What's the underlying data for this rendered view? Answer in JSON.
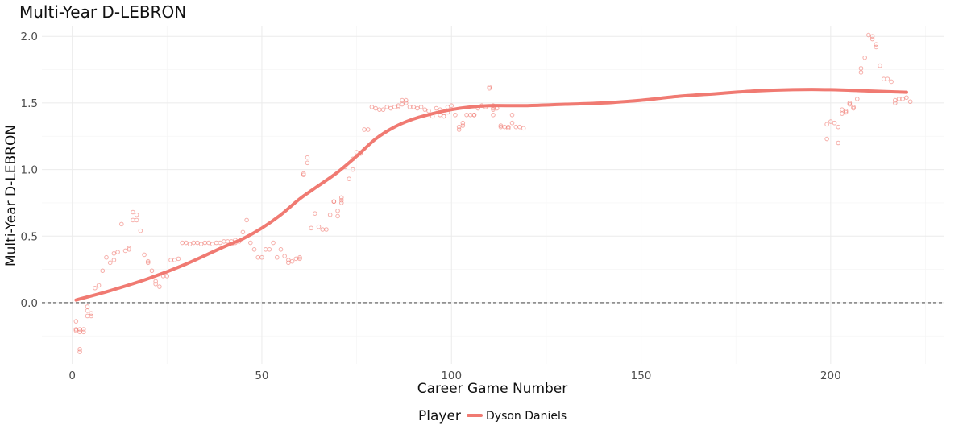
{
  "chart_data": {
    "type": "scatter",
    "title": "Multi-Year D-LEBRON",
    "xlabel": "Career Game Number",
    "ylabel": "Multi-Year D-LEBRON",
    "xlim": [
      -8,
      230
    ],
    "ylim": [
      -0.46,
      2.08
    ],
    "x_ticks": [
      0,
      50,
      100,
      150,
      200
    ],
    "y_ticks": [
      0.0,
      0.5,
      1.0,
      1.5,
      2.0
    ],
    "x_tick_labels": [
      "0",
      "50",
      "100",
      "150",
      "200"
    ],
    "y_tick_labels": [
      "0.0",
      "0.5",
      "1.0",
      "1.5",
      "2.0"
    ],
    "reference_line": {
      "y": 0.0,
      "style": "dashed"
    },
    "grid": true,
    "legend": {
      "title": "Player",
      "position": "bottom"
    },
    "series": [
      {
        "name": "Dyson Daniels",
        "color": "#F07A72",
        "points": [
          [
            1,
            -0.14
          ],
          [
            1,
            -0.2
          ],
          [
            1,
            -0.21
          ],
          [
            2,
            -0.2
          ],
          [
            2,
            -0.22
          ],
          [
            2,
            -0.35
          ],
          [
            2,
            -0.37
          ],
          [
            3,
            -0.2
          ],
          [
            3,
            -0.22
          ],
          [
            4,
            -0.1
          ],
          [
            4,
            -0.03
          ],
          [
            4,
            -0.06
          ],
          [
            5,
            -0.08
          ],
          [
            5,
            -0.1
          ],
          [
            6,
            0.11
          ],
          [
            7,
            0.13
          ],
          [
            8,
            0.24
          ],
          [
            9,
            0.34
          ],
          [
            10,
            0.3
          ],
          [
            11,
            0.32
          ],
          [
            11,
            0.37
          ],
          [
            12,
            0.38
          ],
          [
            13,
            0.59
          ],
          [
            14,
            0.39
          ],
          [
            15,
            0.4
          ],
          [
            15,
            0.41
          ],
          [
            16,
            0.68
          ],
          [
            16,
            0.62
          ],
          [
            17,
            0.66
          ],
          [
            17,
            0.62
          ],
          [
            18,
            0.54
          ],
          [
            19,
            0.36
          ],
          [
            20,
            0.31
          ],
          [
            20,
            0.3
          ],
          [
            21,
            0.24
          ],
          [
            22,
            0.16
          ],
          [
            22,
            0.14
          ],
          [
            23,
            0.12
          ],
          [
            24,
            0.2
          ],
          [
            25,
            0.2
          ],
          [
            26,
            0.32
          ],
          [
            27,
            0.32
          ],
          [
            28,
            0.33
          ],
          [
            29,
            0.45
          ],
          [
            30,
            0.45
          ],
          [
            31,
            0.44
          ],
          [
            32,
            0.45
          ],
          [
            33,
            0.45
          ],
          [
            34,
            0.44
          ],
          [
            35,
            0.45
          ],
          [
            36,
            0.45
          ],
          [
            37,
            0.44
          ],
          [
            38,
            0.45
          ],
          [
            39,
            0.45
          ],
          [
            40,
            0.46
          ],
          [
            41,
            0.46
          ],
          [
            42,
            0.46
          ],
          [
            42,
            0.44
          ],
          [
            43,
            0.45
          ],
          [
            43,
            0.47
          ],
          [
            44,
            0.46
          ],
          [
            45,
            0.53
          ],
          [
            46,
            0.62
          ],
          [
            47,
            0.45
          ],
          [
            48,
            0.4
          ],
          [
            49,
            0.34
          ],
          [
            50,
            0.34
          ],
          [
            51,
            0.4
          ],
          [
            52,
            0.4
          ],
          [
            53,
            0.45
          ],
          [
            54,
            0.34
          ],
          [
            55,
            0.4
          ],
          [
            56,
            0.35
          ],
          [
            57,
            0.32
          ],
          [
            57,
            0.3
          ],
          [
            58,
            0.31
          ],
          [
            59,
            0.33
          ],
          [
            60,
            0.33
          ],
          [
            60,
            0.34
          ],
          [
            61,
            0.96
          ],
          [
            61,
            0.97
          ],
          [
            62,
            1.09
          ],
          [
            62,
            1.05
          ],
          [
            63,
            0.56
          ],
          [
            64,
            0.67
          ],
          [
            65,
            0.57
          ],
          [
            66,
            0.55
          ],
          [
            67,
            0.55
          ],
          [
            68,
            0.66
          ],
          [
            69,
            0.76
          ],
          [
            69,
            0.76
          ],
          [
            70,
            0.65
          ],
          [
            70,
            0.69
          ],
          [
            71,
            0.77
          ],
          [
            71,
            0.79
          ],
          [
            71,
            0.75
          ],
          [
            72,
            1.02
          ],
          [
            73,
            0.93
          ],
          [
            74,
            1.0
          ],
          [
            74,
            1.08
          ],
          [
            75,
            1.13
          ],
          [
            76,
            1.12
          ],
          [
            77,
            1.3
          ],
          [
            78,
            1.3
          ],
          [
            79,
            1.47
          ],
          [
            80,
            1.46
          ],
          [
            81,
            1.45
          ],
          [
            82,
            1.45
          ],
          [
            83,
            1.47
          ],
          [
            84,
            1.46
          ],
          [
            85,
            1.47
          ],
          [
            86,
            1.47
          ],
          [
            86,
            1.48
          ],
          [
            87,
            1.49
          ],
          [
            87,
            1.52
          ],
          [
            88,
            1.52
          ],
          [
            88,
            1.5
          ],
          [
            89,
            1.47
          ],
          [
            90,
            1.47
          ],
          [
            91,
            1.46
          ],
          [
            92,
            1.47
          ],
          [
            93,
            1.45
          ],
          [
            94,
            1.44
          ],
          [
            95,
            1.4
          ],
          [
            96,
            1.46
          ],
          [
            97,
            1.41
          ],
          [
            97,
            1.45
          ],
          [
            98,
            1.4
          ],
          [
            98,
            1.4
          ],
          [
            99,
            1.43
          ],
          [
            99,
            1.47
          ],
          [
            100,
            1.48
          ],
          [
            101,
            1.41
          ],
          [
            102,
            1.3
          ],
          [
            102,
            1.32
          ],
          [
            103,
            1.35
          ],
          [
            103,
            1.33
          ],
          [
            104,
            1.41
          ],
          [
            105,
            1.41
          ],
          [
            106,
            1.41
          ],
          [
            106,
            1.41
          ],
          [
            107,
            1.46
          ],
          [
            108,
            1.48
          ],
          [
            109,
            1.47
          ],
          [
            110,
            1.62
          ],
          [
            110,
            1.61
          ],
          [
            111,
            1.41
          ],
          [
            111,
            1.45
          ],
          [
            111,
            1.46
          ],
          [
            111,
            1.48
          ],
          [
            112,
            1.46
          ],
          [
            113,
            1.33
          ],
          [
            113,
            1.32
          ],
          [
            114,
            1.32
          ],
          [
            115,
            1.31
          ],
          [
            115,
            1.32
          ],
          [
            116,
            1.35
          ],
          [
            116,
            1.41
          ],
          [
            117,
            1.32
          ],
          [
            118,
            1.32
          ],
          [
            119,
            1.31
          ],
          [
            199,
            1.23
          ],
          [
            199,
            1.34
          ],
          [
            200,
            1.36
          ],
          [
            201,
            1.35
          ],
          [
            202,
            1.2
          ],
          [
            202,
            1.32
          ],
          [
            203,
            1.42
          ],
          [
            203,
            1.45
          ],
          [
            204,
            1.43
          ],
          [
            204,
            1.44
          ],
          [
            205,
            1.5
          ],
          [
            205,
            1.49
          ],
          [
            206,
            1.47
          ],
          [
            206,
            1.46
          ],
          [
            207,
            1.53
          ],
          [
            208,
            1.76
          ],
          [
            208,
            1.73
          ],
          [
            209,
            1.84
          ],
          [
            210,
            2.01
          ],
          [
            211,
            2.0
          ],
          [
            211,
            1.98
          ],
          [
            212,
            1.94
          ],
          [
            212,
            1.92
          ],
          [
            213,
            1.78
          ],
          [
            214,
            1.68
          ],
          [
            215,
            1.68
          ],
          [
            216,
            1.66
          ],
          [
            217,
            1.52
          ],
          [
            217,
            1.5
          ],
          [
            218,
            1.53
          ],
          [
            219,
            1.53
          ],
          [
            220,
            1.54
          ],
          [
            221,
            1.51
          ]
        ],
        "trend": [
          [
            1,
            0.02
          ],
          [
            10,
            0.09
          ],
          [
            20,
            0.18
          ],
          [
            30,
            0.29
          ],
          [
            40,
            0.42
          ],
          [
            45,
            0.48
          ],
          [
            50,
            0.56
          ],
          [
            55,
            0.66
          ],
          [
            60,
            0.78
          ],
          [
            65,
            0.88
          ],
          [
            70,
            0.98
          ],
          [
            75,
            1.1
          ],
          [
            80,
            1.23
          ],
          [
            85,
            1.32
          ],
          [
            90,
            1.38
          ],
          [
            95,
            1.42
          ],
          [
            100,
            1.45
          ],
          [
            105,
            1.47
          ],
          [
            110,
            1.48
          ],
          [
            120,
            1.48
          ],
          [
            130,
            1.49
          ],
          [
            140,
            1.5
          ],
          [
            150,
            1.52
          ],
          [
            160,
            1.55
          ],
          [
            170,
            1.57
          ],
          [
            180,
            1.59
          ],
          [
            190,
            1.6
          ],
          [
            200,
            1.6
          ],
          [
            210,
            1.59
          ],
          [
            220,
            1.58
          ]
        ]
      }
    ]
  }
}
